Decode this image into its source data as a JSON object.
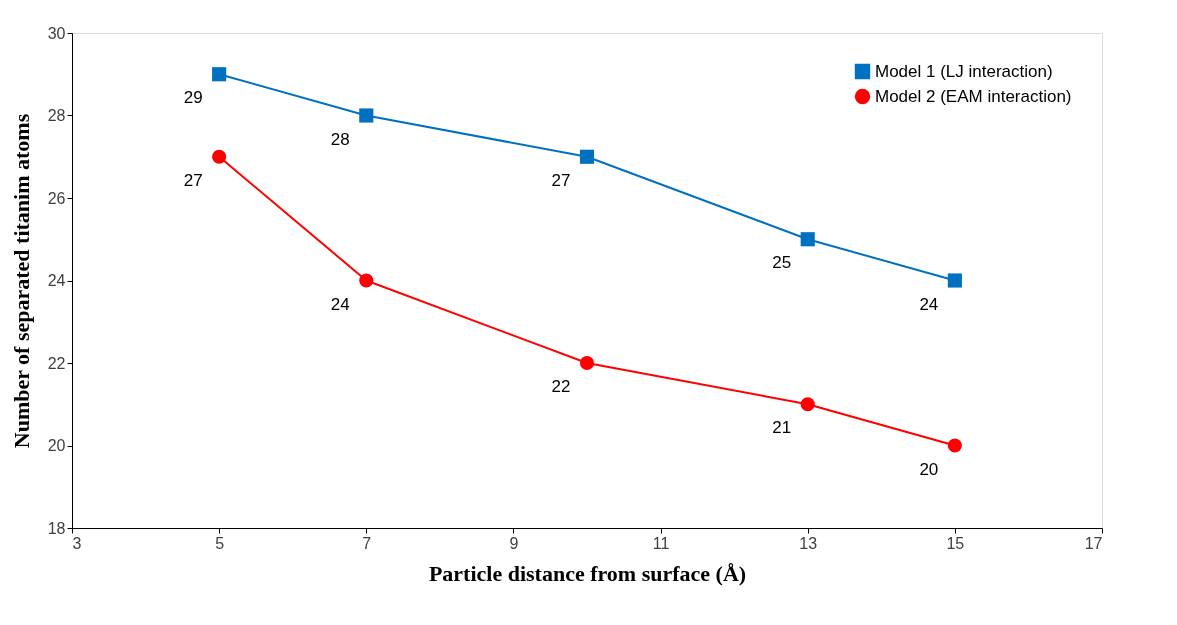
{
  "chart_data": {
    "type": "line",
    "xlabel": "Particle distance from surface (Å)",
    "ylabel": "Number of separated titanim atoms",
    "x": [
      5,
      7,
      10,
      13,
      15
    ],
    "series": [
      {
        "name": "Model 1 (LJ interaction)",
        "color": "#0070c0",
        "marker": "square",
        "values": [
          29,
          28,
          27,
          25,
          24
        ]
      },
      {
        "name": "Model 2 (EAM interaction)",
        "color": "#ff0000",
        "marker": "circle",
        "values": [
          27,
          24,
          22,
          21,
          20
        ]
      }
    ],
    "xlim": [
      3,
      17
    ],
    "xticks": [
      3,
      5,
      7,
      9,
      11,
      13,
      15,
      17
    ],
    "ylim": [
      18,
      30
    ],
    "yticks": [
      18,
      20,
      22,
      24,
      26,
      28,
      30
    ],
    "grid": false,
    "legend": "top right",
    "data_labels": true,
    "line_style": "solid"
  }
}
